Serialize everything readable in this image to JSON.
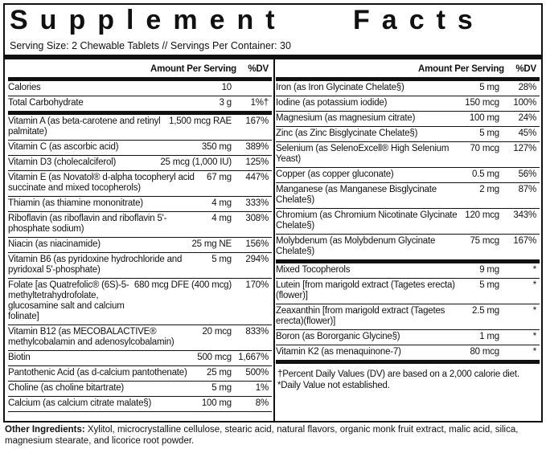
{
  "header": {
    "title": "Supplement Facts",
    "serving": "Serving Size: 2 Chewable Tablets // Servings Per Container: 30"
  },
  "left": {
    "col_amount": "Amount Per Serving",
    "col_dv": "%DV",
    "groups": [
      [
        {
          "name": "Calories",
          "amount": "10",
          "dv": ""
        },
        {
          "name": "Total Carbohydrate",
          "amount": "3 g",
          "dv": "1%†"
        }
      ],
      [
        {
          "name": "Vitamin A (as beta-carotene and retinyl palmitate)",
          "amount": "1,500 mcg RAE",
          "dv": "167%"
        },
        {
          "name": "Vitamin C (as ascorbic acid)",
          "amount": "350 mg",
          "dv": "389%"
        },
        {
          "name": "Vitamin D3 (cholecalciferol)",
          "amount": "25 mcg (1,000 IU)",
          "dv": "125%"
        },
        {
          "name": "Vitamin E (as Novatol® d-alpha tocopheryl acid succinate and mixed tocopherols)",
          "amount": "67 mg",
          "dv": "447%"
        },
        {
          "name": "Thiamin (as thiamine mononitrate)",
          "amount": "4 mg",
          "dv": "333%"
        },
        {
          "name": "Riboflavin (as riboflavin and riboflavin 5'-phosphate sodium)",
          "amount": "4 mg",
          "dv": "308%"
        },
        {
          "name": "Niacin (as niacinamide)",
          "amount": "25 mg NE",
          "dv": "156%"
        },
        {
          "name": "Vitamin B6 (as pyridoxine hydrochloride and pyridoxal 5'-phosphate)",
          "amount": "5 mg",
          "dv": "294%"
        },
        {
          "name": "Folate [as Quatrefolic® (6S)-5-methyltetrahydrofolate, glucosamine salt and calcium folinate]",
          "amount": "680 mcg DFE (400 mcg)",
          "dv": "170%"
        },
        {
          "name": "Vitamin B12 (as MECOBALACTIVE® methylcobalamin and adenosylcobalamin)",
          "amount": "20 mcg",
          "dv": "833%"
        },
        {
          "name": "Biotin",
          "amount": "500 mcg",
          "dv": "1,667%"
        },
        {
          "name": "Pantothenic Acid (as d-calcium pantothenate)",
          "amount": "25 mg",
          "dv": "500%"
        },
        {
          "name": "Choline (as choline bitartrate)",
          "amount": "5 mg",
          "dv": "1%"
        },
        {
          "name": "Calcium (as calcium citrate malate§)",
          "amount": "100 mg",
          "dv": "8%"
        }
      ]
    ]
  },
  "right": {
    "col_amount": "Amount Per Serving",
    "col_dv": "%DV",
    "groups": [
      [
        {
          "name": "Iron (as Iron Glycinate Chelate§)",
          "amount": "5 mg",
          "dv": "28%"
        },
        {
          "name": "Iodine (as potassium iodide)",
          "amount": "150 mcg",
          "dv": "100%"
        },
        {
          "name": "Magnesium (as magnesium citrate)",
          "amount": "100 mg",
          "dv": "24%"
        },
        {
          "name": "Zinc (as Zinc Bisglycinate Chelate§)",
          "amount": "5 mg",
          "dv": "45%"
        },
        {
          "name": "Selenium (as SelenoExcell® High Selenium Yeast)",
          "amount": "70 mcg",
          "dv": "127%"
        },
        {
          "name": "Copper (as copper gluconate)",
          "amount": "0.5 mg",
          "dv": "56%"
        },
        {
          "name": "Manganese (as Manganese Bisglycinate Chelate§)",
          "amount": "2 mg",
          "dv": "87%"
        },
        {
          "name": "Chromium (as Chromium Nicotinate Glycinate Chelate§)",
          "amount": "120 mcg",
          "dv": "343%"
        },
        {
          "name": "Molybdenum (as Molybdenum Glycinate Chelate§)",
          "amount": "75 mcg",
          "dv": "167%"
        }
      ],
      [
        {
          "name": "Mixed Tocopherols",
          "amount": "9 mg",
          "dv": "*"
        },
        {
          "name": "Lutein [from marigold extract (Tagetes erecta)(flower)]",
          "amount": "5 mg",
          "dv": "*"
        },
        {
          "name": "Zeaxanthin [from marigold extract (Tagetes erecta)(flower)]",
          "amount": "2.5 mg",
          "dv": "*"
        },
        {
          "name": "Boron (as Bororganic Glycine§)",
          "amount": "1 mg",
          "dv": "*"
        },
        {
          "name": "Vitamin K2 (as menaquinone-7)",
          "amount": "80 mcg",
          "dv": "*"
        }
      ]
    ],
    "footnotes": [
      "†Percent Daily Values (DV) are based on a 2,000 calorie diet.",
      "*Daily Value not established."
    ]
  },
  "other": {
    "label": "Other Ingredients:",
    "text": " Xylitol, microcrystalline cellulose, stearic acid, natural flavors, organic monk fruit extract, malic acid, silica, magnesium stearate, and licorice root powder."
  }
}
